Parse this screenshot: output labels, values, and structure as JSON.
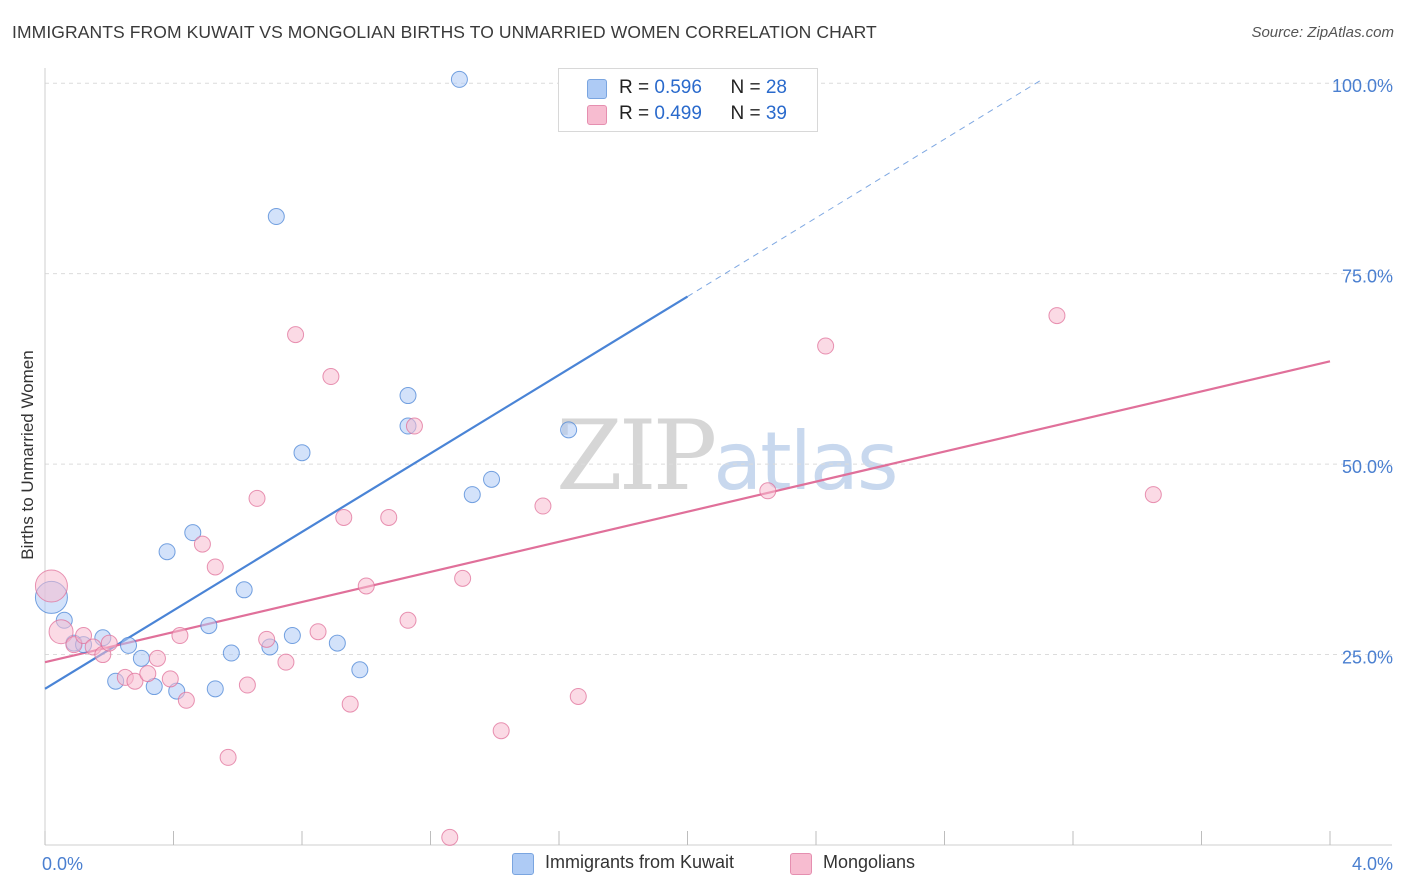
{
  "title": "IMMIGRANTS FROM KUWAIT VS MONGOLIAN BIRTHS TO UNMARRIED WOMEN CORRELATION CHART",
  "source": "Source: ZipAtlas.com",
  "watermark": {
    "zip": "ZIP",
    "atlas": "atlas"
  },
  "legend": {
    "rows": [
      {
        "r_label": "R = ",
        "r_value": "0.596",
        "n_label": "N = ",
        "n_value": "28",
        "color": "#aecbf5"
      },
      {
        "r_label": "R = ",
        "r_value": "0.499",
        "n_label": "N = ",
        "n_value": "39",
        "color": "#f7bcd0"
      }
    ]
  },
  "bottom_legend": {
    "series1": "Immigrants from Kuwait",
    "series2": "Mongolians"
  },
  "chart_data": {
    "type": "scatter",
    "title": "IMMIGRANTS FROM KUWAIT VS MONGOLIAN BIRTHS TO UNMARRIED WOMEN CORRELATION CHART",
    "xlabel": "",
    "ylabel": "Births to Unmarried Women",
    "xlim": [
      0,
      4.0
    ],
    "ylim": [
      0,
      102
    ],
    "x_tick_labels": [
      {
        "value": 0,
        "label": "0.0%"
      },
      {
        "value": 4.0,
        "label": "4.0%"
      }
    ],
    "y_tick_labels": [
      {
        "value": 25,
        "label": "25.0%"
      },
      {
        "value": 50,
        "label": "50.0%"
      },
      {
        "value": 75,
        "label": "75.0%"
      },
      {
        "value": 100,
        "label": "100.0%"
      }
    ],
    "grid": true,
    "series": [
      {
        "name": "Immigrants from Kuwait",
        "color": "#4a84d6",
        "fill": "#aecbf5",
        "trend": {
          "x0": 0.0,
          "y0": 20.5,
          "x1": 2.0,
          "y1": 72.0,
          "dash_to_x": 3.1,
          "dash_to_y": 100.4
        },
        "points": [
          {
            "x": 0.02,
            "y": 32.5,
            "size": "large"
          },
          {
            "x": 0.06,
            "y": 29.5
          },
          {
            "x": 0.09,
            "y": 26.5
          },
          {
            "x": 0.12,
            "y": 26.3
          },
          {
            "x": 0.18,
            "y": 27.2
          },
          {
            "x": 0.22,
            "y": 21.5
          },
          {
            "x": 0.26,
            "y": 26.2
          },
          {
            "x": 0.3,
            "y": 24.5
          },
          {
            "x": 0.34,
            "y": 20.8
          },
          {
            "x": 0.38,
            "y": 38.5
          },
          {
            "x": 0.41,
            "y": 20.2
          },
          {
            "x": 0.46,
            "y": 41.0
          },
          {
            "x": 0.51,
            "y": 28.8
          },
          {
            "x": 0.53,
            "y": 20.5
          },
          {
            "x": 0.58,
            "y": 25.2
          },
          {
            "x": 0.62,
            "y": 33.5
          },
          {
            "x": 0.7,
            "y": 26.0
          },
          {
            "x": 0.72,
            "y": 82.5
          },
          {
            "x": 0.77,
            "y": 27.5
          },
          {
            "x": 0.8,
            "y": 51.5
          },
          {
            "x": 0.91,
            "y": 26.5
          },
          {
            "x": 0.98,
            "y": 23.0
          },
          {
            "x": 1.13,
            "y": 59.0
          },
          {
            "x": 1.13,
            "y": 55.0
          },
          {
            "x": 1.29,
            "y": 100.5
          },
          {
            "x": 1.33,
            "y": 46.0
          },
          {
            "x": 1.39,
            "y": 48.0
          },
          {
            "x": 1.63,
            "y": 54.5
          }
        ]
      },
      {
        "name": "Mongolians",
        "color": "#e0709a",
        "fill": "#f7bcd0",
        "trend": {
          "x0": 0.0,
          "y0": 24.0,
          "x1": 4.0,
          "y1": 63.5
        },
        "points": [
          {
            "x": 0.02,
            "y": 34.0,
            "size": "large"
          },
          {
            "x": 0.05,
            "y": 28.0,
            "size": "medium"
          },
          {
            "x": 0.09,
            "y": 26.3
          },
          {
            "x": 0.12,
            "y": 27.5
          },
          {
            "x": 0.15,
            "y": 26.0
          },
          {
            "x": 0.18,
            "y": 25.0
          },
          {
            "x": 0.2,
            "y": 26.5
          },
          {
            "x": 0.25,
            "y": 22.0
          },
          {
            "x": 0.28,
            "y": 21.5
          },
          {
            "x": 0.32,
            "y": 22.5
          },
          {
            "x": 0.35,
            "y": 24.5
          },
          {
            "x": 0.39,
            "y": 21.8
          },
          {
            "x": 0.42,
            "y": 27.5
          },
          {
            "x": 0.44,
            "y": 19.0
          },
          {
            "x": 0.49,
            "y": 39.5
          },
          {
            "x": 0.53,
            "y": 36.5
          },
          {
            "x": 0.57,
            "y": 11.5
          },
          {
            "x": 0.63,
            "y": 21.0
          },
          {
            "x": 0.66,
            "y": 45.5
          },
          {
            "x": 0.69,
            "y": 27.0
          },
          {
            "x": 0.75,
            "y": 24.0
          },
          {
            "x": 0.78,
            "y": 67.0
          },
          {
            "x": 0.85,
            "y": 28.0
          },
          {
            "x": 0.89,
            "y": 61.5
          },
          {
            "x": 0.93,
            "y": 43.0
          },
          {
            "x": 0.95,
            "y": 18.5
          },
          {
            "x": 1.0,
            "y": 34.0
          },
          {
            "x": 1.07,
            "y": 43.0
          },
          {
            "x": 1.13,
            "y": 29.5
          },
          {
            "x": 1.15,
            "y": 55.0
          },
          {
            "x": 1.26,
            "y": 1.0
          },
          {
            "x": 1.3,
            "y": 35.0
          },
          {
            "x": 1.42,
            "y": 15.0
          },
          {
            "x": 1.55,
            "y": 44.5
          },
          {
            "x": 1.66,
            "y": 19.5
          },
          {
            "x": 2.25,
            "y": 46.5
          },
          {
            "x": 2.43,
            "y": 65.5
          },
          {
            "x": 3.15,
            "y": 69.5
          },
          {
            "x": 3.45,
            "y": 46.0
          }
        ]
      }
    ]
  }
}
